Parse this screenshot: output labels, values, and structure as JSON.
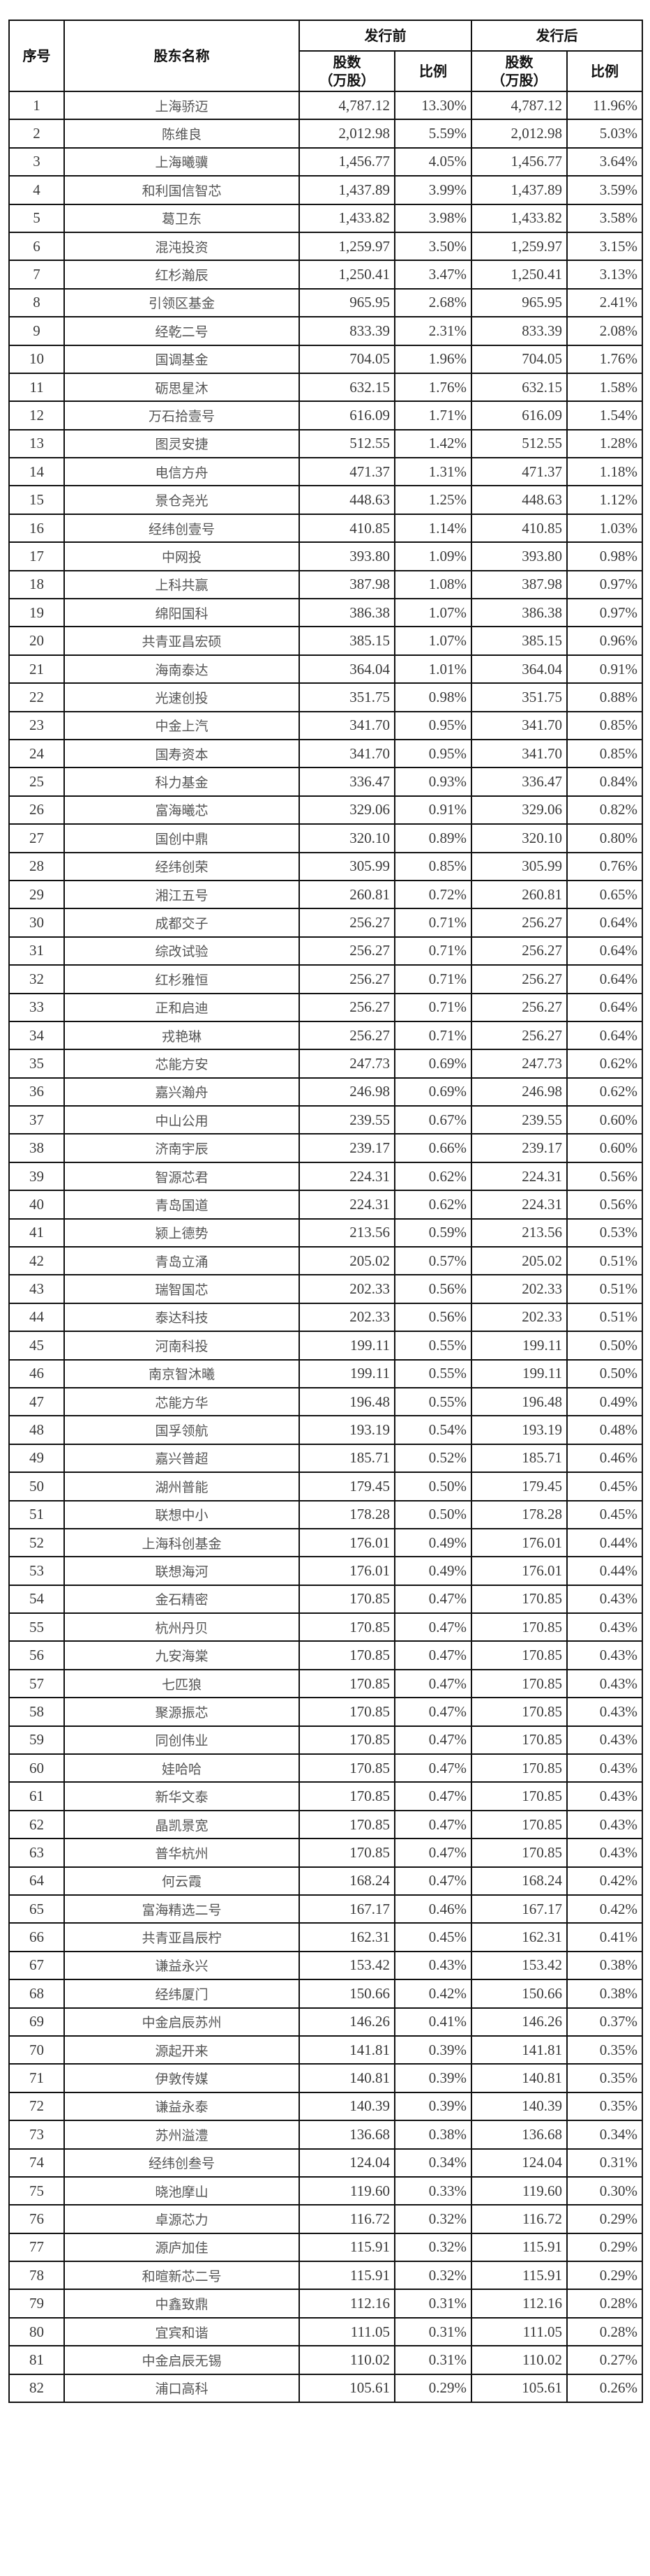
{
  "header": {
    "seq": "序号",
    "name": "股东名称",
    "before": "发行前",
    "after": "发行后",
    "shares": "股数",
    "shares_unit": "（万股）",
    "ratio": "比例"
  },
  "rows": [
    [
      "1",
      "上海骄迈",
      "4,787.12",
      "13.30%",
      "4,787.12",
      "11.96%"
    ],
    [
      "2",
      "陈维良",
      "2,012.98",
      "5.59%",
      "2,012.98",
      "5.03%"
    ],
    [
      "3",
      "上海曦骥",
      "1,456.77",
      "4.05%",
      "1,456.77",
      "3.64%"
    ],
    [
      "4",
      "和利国信智芯",
      "1,437.89",
      "3.99%",
      "1,437.89",
      "3.59%"
    ],
    [
      "5",
      "葛卫东",
      "1,433.82",
      "3.98%",
      "1,433.82",
      "3.58%"
    ],
    [
      "6",
      "混沌投资",
      "1,259.97",
      "3.50%",
      "1,259.97",
      "3.15%"
    ],
    [
      "7",
      "红杉瀚辰",
      "1,250.41",
      "3.47%",
      "1,250.41",
      "3.13%"
    ],
    [
      "8",
      "引领区基金",
      "965.95",
      "2.68%",
      "965.95",
      "2.41%"
    ],
    [
      "9",
      "经乾二号",
      "833.39",
      "2.31%",
      "833.39",
      "2.08%"
    ],
    [
      "10",
      "国调基金",
      "704.05",
      "1.96%",
      "704.05",
      "1.76%"
    ],
    [
      "11",
      "砺思星沐",
      "632.15",
      "1.76%",
      "632.15",
      "1.58%"
    ],
    [
      "12",
      "万石拾壹号",
      "616.09",
      "1.71%",
      "616.09",
      "1.54%"
    ],
    [
      "13",
      "图灵安捷",
      "512.55",
      "1.42%",
      "512.55",
      "1.28%"
    ],
    [
      "14",
      "电信方舟",
      "471.37",
      "1.31%",
      "471.37",
      "1.18%"
    ],
    [
      "15",
      "景仓尧光",
      "448.63",
      "1.25%",
      "448.63",
      "1.12%"
    ],
    [
      "16",
      "经纬创壹号",
      "410.85",
      "1.14%",
      "410.85",
      "1.03%"
    ],
    [
      "17",
      "中网投",
      "393.80",
      "1.09%",
      "393.80",
      "0.98%"
    ],
    [
      "18",
      "上科共赢",
      "387.98",
      "1.08%",
      "387.98",
      "0.97%"
    ],
    [
      "19",
      "绵阳国科",
      "386.38",
      "1.07%",
      "386.38",
      "0.97%"
    ],
    [
      "20",
      "共青亚昌宏硕",
      "385.15",
      "1.07%",
      "385.15",
      "0.96%"
    ],
    [
      "21",
      "海南泰达",
      "364.04",
      "1.01%",
      "364.04",
      "0.91%"
    ],
    [
      "22",
      "光速创投",
      "351.75",
      "0.98%",
      "351.75",
      "0.88%"
    ],
    [
      "23",
      "中金上汽",
      "341.70",
      "0.95%",
      "341.70",
      "0.85%"
    ],
    [
      "24",
      "国寿资本",
      "341.70",
      "0.95%",
      "341.70",
      "0.85%"
    ],
    [
      "25",
      "科力基金",
      "336.47",
      "0.93%",
      "336.47",
      "0.84%"
    ],
    [
      "26",
      "富海曦芯",
      "329.06",
      "0.91%",
      "329.06",
      "0.82%"
    ],
    [
      "27",
      "国创中鼎",
      "320.10",
      "0.89%",
      "320.10",
      "0.80%"
    ],
    [
      "28",
      "经纬创荣",
      "305.99",
      "0.85%",
      "305.99",
      "0.76%"
    ],
    [
      "29",
      "湘江五号",
      "260.81",
      "0.72%",
      "260.81",
      "0.65%"
    ],
    [
      "30",
      "成都交子",
      "256.27",
      "0.71%",
      "256.27",
      "0.64%"
    ],
    [
      "31",
      "综改试验",
      "256.27",
      "0.71%",
      "256.27",
      "0.64%"
    ],
    [
      "32",
      "红杉雅恒",
      "256.27",
      "0.71%",
      "256.27",
      "0.64%"
    ],
    [
      "33",
      "正和启迪",
      "256.27",
      "0.71%",
      "256.27",
      "0.64%"
    ],
    [
      "34",
      "戎艳琳",
      "256.27",
      "0.71%",
      "256.27",
      "0.64%"
    ],
    [
      "35",
      "芯能方安",
      "247.73",
      "0.69%",
      "247.73",
      "0.62%"
    ],
    [
      "36",
      "嘉兴瀚舟",
      "246.98",
      "0.69%",
      "246.98",
      "0.62%"
    ],
    [
      "37",
      "中山公用",
      "239.55",
      "0.67%",
      "239.55",
      "0.60%"
    ],
    [
      "38",
      "济南宇辰",
      "239.17",
      "0.66%",
      "239.17",
      "0.60%"
    ],
    [
      "39",
      "智源芯君",
      "224.31",
      "0.62%",
      "224.31",
      "0.56%"
    ],
    [
      "40",
      "青岛国道",
      "224.31",
      "0.62%",
      "224.31",
      "0.56%"
    ],
    [
      "41",
      "颍上德势",
      "213.56",
      "0.59%",
      "213.56",
      "0.53%"
    ],
    [
      "42",
      "青岛立涌",
      "205.02",
      "0.57%",
      "205.02",
      "0.51%"
    ],
    [
      "43",
      "瑞智国芯",
      "202.33",
      "0.56%",
      "202.33",
      "0.51%"
    ],
    [
      "44",
      "泰达科技",
      "202.33",
      "0.56%",
      "202.33",
      "0.51%"
    ],
    [
      "45",
      "河南科投",
      "199.11",
      "0.55%",
      "199.11",
      "0.50%"
    ],
    [
      "46",
      "南京智沐曦",
      "199.11",
      "0.55%",
      "199.11",
      "0.50%"
    ],
    [
      "47",
      "芯能方华",
      "196.48",
      "0.55%",
      "196.48",
      "0.49%"
    ],
    [
      "48",
      "国孚领航",
      "193.19",
      "0.54%",
      "193.19",
      "0.48%"
    ],
    [
      "49",
      "嘉兴普超",
      "185.71",
      "0.52%",
      "185.71",
      "0.46%"
    ],
    [
      "50",
      "湖州普能",
      "179.45",
      "0.50%",
      "179.45",
      "0.45%"
    ],
    [
      "51",
      "联想中小",
      "178.28",
      "0.50%",
      "178.28",
      "0.45%"
    ],
    [
      "52",
      "上海科创基金",
      "176.01",
      "0.49%",
      "176.01",
      "0.44%"
    ],
    [
      "53",
      "联想海河",
      "176.01",
      "0.49%",
      "176.01",
      "0.44%"
    ],
    [
      "54",
      "金石精密",
      "170.85",
      "0.47%",
      "170.85",
      "0.43%"
    ],
    [
      "55",
      "杭州丹贝",
      "170.85",
      "0.47%",
      "170.85",
      "0.43%"
    ],
    [
      "56",
      "九安海棠",
      "170.85",
      "0.47%",
      "170.85",
      "0.43%"
    ],
    [
      "57",
      "七匹狼",
      "170.85",
      "0.47%",
      "170.85",
      "0.43%"
    ],
    [
      "58",
      "聚源振芯",
      "170.85",
      "0.47%",
      "170.85",
      "0.43%"
    ],
    [
      "59",
      "同创伟业",
      "170.85",
      "0.47%",
      "170.85",
      "0.43%"
    ],
    [
      "60",
      "娃哈哈",
      "170.85",
      "0.47%",
      "170.85",
      "0.43%"
    ],
    [
      "61",
      "新华文泰",
      "170.85",
      "0.47%",
      "170.85",
      "0.43%"
    ],
    [
      "62",
      "晶凯景宽",
      "170.85",
      "0.47%",
      "170.85",
      "0.43%"
    ],
    [
      "63",
      "普华杭州",
      "170.85",
      "0.47%",
      "170.85",
      "0.43%"
    ],
    [
      "64",
      "何云霞",
      "168.24",
      "0.47%",
      "168.24",
      "0.42%"
    ],
    [
      "65",
      "富海精选二号",
      "167.17",
      "0.46%",
      "167.17",
      "0.42%"
    ],
    [
      "66",
      "共青亚昌辰柠",
      "162.31",
      "0.45%",
      "162.31",
      "0.41%"
    ],
    [
      "67",
      "谦益永兴",
      "153.42",
      "0.43%",
      "153.42",
      "0.38%"
    ],
    [
      "68",
      "经纬厦门",
      "150.66",
      "0.42%",
      "150.66",
      "0.38%"
    ],
    [
      "69",
      "中金启辰苏州",
      "146.26",
      "0.41%",
      "146.26",
      "0.37%"
    ],
    [
      "70",
      "源起开来",
      "141.81",
      "0.39%",
      "141.81",
      "0.35%"
    ],
    [
      "71",
      "伊敦传媒",
      "140.81",
      "0.39%",
      "140.81",
      "0.35%"
    ],
    [
      "72",
      "谦益永泰",
      "140.39",
      "0.39%",
      "140.39",
      "0.35%"
    ],
    [
      "73",
      "苏州溢澧",
      "136.68",
      "0.38%",
      "136.68",
      "0.34%"
    ],
    [
      "74",
      "经纬创叁号",
      "124.04",
      "0.34%",
      "124.04",
      "0.31%"
    ],
    [
      "75",
      "晓池摩山",
      "119.60",
      "0.33%",
      "119.60",
      "0.30%"
    ],
    [
      "76",
      "卓源芯力",
      "116.72",
      "0.32%",
      "116.72",
      "0.29%"
    ],
    [
      "77",
      "源庐加佳",
      "115.91",
      "0.32%",
      "115.91",
      "0.29%"
    ],
    [
      "78",
      "和暄新芯二号",
      "115.91",
      "0.32%",
      "115.91",
      "0.29%"
    ],
    [
      "79",
      "中鑫致鼎",
      "112.16",
      "0.31%",
      "112.16",
      "0.28%"
    ],
    [
      "80",
      "宜宾和谐",
      "111.05",
      "0.31%",
      "111.05",
      "0.28%"
    ],
    [
      "81",
      "中金启辰无锡",
      "110.02",
      "0.31%",
      "110.02",
      "0.27%"
    ],
    [
      "82",
      "浦口高科",
      "105.61",
      "0.29%",
      "105.61",
      "0.26%"
    ]
  ]
}
